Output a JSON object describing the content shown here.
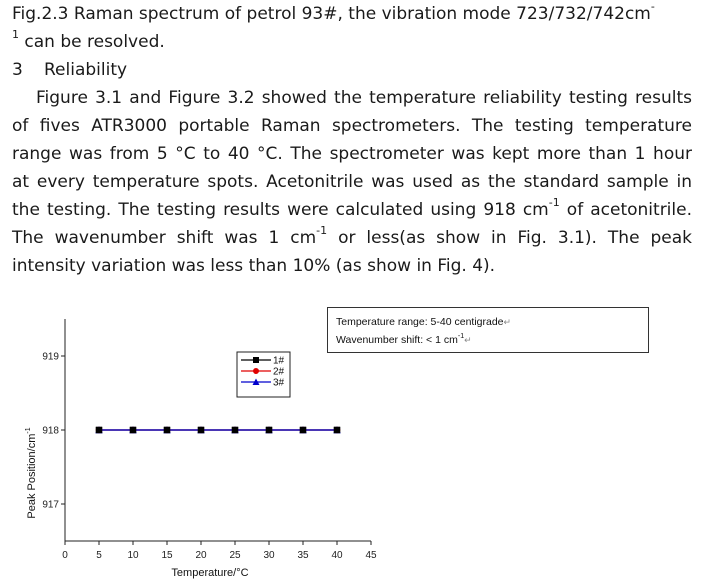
{
  "text": {
    "caption_line1": "Fig.2.3 Raman spectrum of petrol 93#, the vibration mode 723/732/742cm",
    "caption_sup1": "-",
    "caption_line2_sup": "1",
    "caption_line2": " can be resolved.",
    "section_number": "3",
    "section_title": "Reliability",
    "para_line1": "Figure 3.1 and Figure 3.2 showed the temperature reliability testing results",
    "para_line2": "of fives ATR3000 portable Raman spectrometers. The testing temperature",
    "para_line3a": "range was from 5 ",
    "para_deg1": "°C",
    "para_line3b": " to 40 ",
    "para_deg2": "°C",
    "para_line3c": ". The spectrometer was kept more than 1 hour",
    "para_line4": "at every temperature spots. Acetonitrile was used as the standard sample in",
    "para_line5a": "the testing. The testing results were calculated using 918 cm",
    "para_line5sup": "-1",
    "para_line5b": " of acetonitrile.",
    "para_line6a": "The wavenumber shift was 1 cm",
    "para_line6sup": "-1",
    "para_line6b": " or less(as show in Fig. 3.1). The peak",
    "para_line7": "intensity variation was less than 10% (as show in Fig. 4)."
  },
  "info_box": {
    "line1": "Temperature range: 5-40 centigrade",
    "line1_mark": "↵",
    "line2a": "Wavenumber shift: < 1 cm",
    "line2sup": "-1",
    "line2_mark": "↵"
  },
  "chart_data": {
    "type": "line",
    "title": "",
    "xlabel": "Temperature/°C",
    "ylabel": "Peak Position/cm",
    "ylabel_sup": "-1",
    "xlim": [
      0,
      45
    ],
    "ylim": [
      916.5,
      919.5
    ],
    "xticks": [
      "0",
      "5",
      "10",
      "15",
      "20",
      "25",
      "30",
      "35",
      "40",
      "45"
    ],
    "yticks": [
      "917",
      "918",
      "919"
    ],
    "grid": false,
    "legend_position": "top-center",
    "x": [
      5,
      10,
      15,
      20,
      25,
      30,
      35,
      40
    ],
    "series": [
      {
        "name": "1#",
        "color": "#000000",
        "marker": "square",
        "values": [
          918,
          918,
          918,
          918,
          918,
          918,
          918,
          918
        ]
      },
      {
        "name": "2#",
        "color": "#e00000",
        "marker": "circle",
        "values": [
          918,
          918,
          918,
          918,
          918,
          918,
          918,
          918
        ]
      },
      {
        "name": "3#",
        "color": "#0000cc",
        "marker": "triangle",
        "values": [
          918,
          918,
          918,
          918,
          918,
          918,
          918,
          918
        ]
      }
    ]
  }
}
